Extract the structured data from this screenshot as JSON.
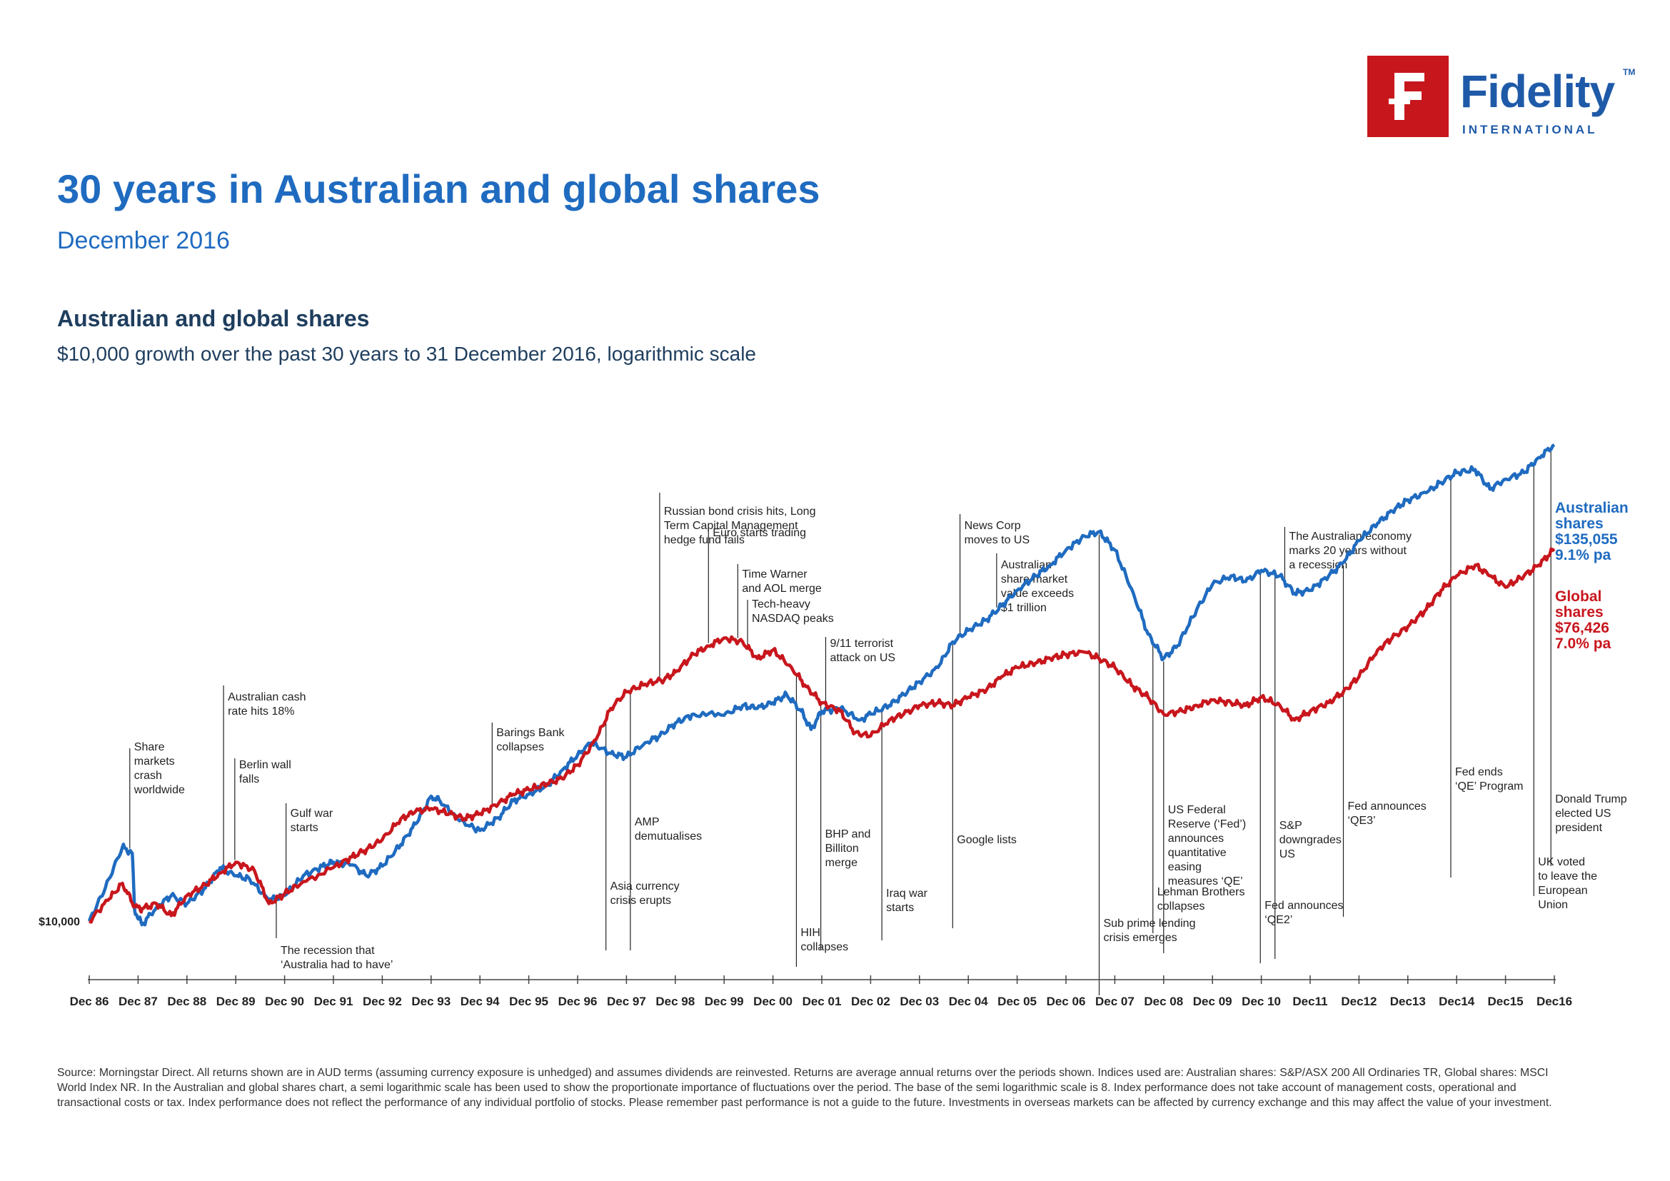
{
  "logo": {
    "word": "Fidelity",
    "tm": "TM",
    "sub": "INTERNATIONAL",
    "icon": "fidelity-f-icon",
    "color": "#c8161d"
  },
  "header": {
    "title": "30 years in Australian and global shares",
    "date": "December 2016"
  },
  "chart_header": {
    "title": "Australian and global shares",
    "subtitle": "$10,000 growth over the past 30 years to 31 December 2016, logarithmic scale"
  },
  "chart_data": {
    "type": "line",
    "yscale": "log",
    "y_label_value": "$10,000",
    "x_tick_labels": [
      "Dec 86",
      "Dec 87",
      "Dec 88",
      "Dec 89",
      "Dec 90",
      "Dec 91",
      "Dec 92",
      "Dec 93",
      "Dec 94",
      "Dec 95",
      "Dec 96",
      "Dec 97",
      "Dec 98",
      "Dec 99",
      "Dec 00",
      "Dec 01",
      "Dec 02",
      "Dec 03",
      "Dec 04",
      "Dec 05",
      "Dec 06",
      "Dec 07",
      "Dec 08",
      "Dec 09",
      "Dec 10",
      "Dec11",
      "Dec12",
      "Dec13",
      "Dec14",
      "Dec15",
      "Dec16"
    ],
    "ylim": [
      9000,
      400000
    ],
    "series": [
      {
        "name": "Australian shares",
        "end_value": "$135,055",
        "return": "9.1% pa",
        "color": "#1f6bc0",
        "points": [
          [
            1986.92,
            10000
          ],
          [
            1987.25,
            12000
          ],
          [
            1987.6,
            15000
          ],
          [
            1987.8,
            14500
          ],
          [
            1987.85,
            10600
          ],
          [
            1988.0,
            9800
          ],
          [
            1988.3,
            10800
          ],
          [
            1988.6,
            11500
          ],
          [
            1988.92,
            11000
          ],
          [
            1989.3,
            12000
          ],
          [
            1989.6,
            13400
          ],
          [
            1989.92,
            12800
          ],
          [
            1990.2,
            12600
          ],
          [
            1990.6,
            11200
          ],
          [
            1990.92,
            11500
          ],
          [
            1991.3,
            12800
          ],
          [
            1991.7,
            13500
          ],
          [
            1991.92,
            13800
          ],
          [
            1992.3,
            13600
          ],
          [
            1992.6,
            12800
          ],
          [
            1992.92,
            13500
          ],
          [
            1993.3,
            15200
          ],
          [
            1993.6,
            17000
          ],
          [
            1993.92,
            19800
          ],
          [
            1994.1,
            19300
          ],
          [
            1994.5,
            17300
          ],
          [
            1994.92,
            16400
          ],
          [
            1995.3,
            17600
          ],
          [
            1995.6,
            19300
          ],
          [
            1995.92,
            20000
          ],
          [
            1996.3,
            21000
          ],
          [
            1996.6,
            22800
          ],
          [
            1996.92,
            24800
          ],
          [
            1997.2,
            26500
          ],
          [
            1997.6,
            25000
          ],
          [
            1997.92,
            24500
          ],
          [
            1998.3,
            26500
          ],
          [
            1998.6,
            27500
          ],
          [
            1998.92,
            29500
          ],
          [
            1999.3,
            31000
          ],
          [
            1999.92,
            30800
          ],
          [
            2000.3,
            32500
          ],
          [
            2000.6,
            32000
          ],
          [
            2000.92,
            33000
          ],
          [
            2001.2,
            34500
          ],
          [
            2001.5,
            31500
          ],
          [
            2001.7,
            28500
          ],
          [
            2001.92,
            31500
          ],
          [
            2002.3,
            32000
          ],
          [
            2002.7,
            30000
          ],
          [
            2002.92,
            31000
          ],
          [
            2003.3,
            32500
          ],
          [
            2003.6,
            34500
          ],
          [
            2003.92,
            37000
          ],
          [
            2004.3,
            40000
          ],
          [
            2004.6,
            46000
          ],
          [
            2004.92,
            49000
          ],
          [
            2005.3,
            52000
          ],
          [
            2005.6,
            56000
          ],
          [
            2005.92,
            61000
          ],
          [
            2006.3,
            66000
          ],
          [
            2006.6,
            70000
          ],
          [
            2006.92,
            76000
          ],
          [
            2007.3,
            82000
          ],
          [
            2007.6,
            84000
          ],
          [
            2007.92,
            76000
          ],
          [
            2008.3,
            60000
          ],
          [
            2008.6,
            48000
          ],
          [
            2008.92,
            42000
          ],
          [
            2009.2,
            45000
          ],
          [
            2009.6,
            55000
          ],
          [
            2009.92,
            63000
          ],
          [
            2010.3,
            66000
          ],
          [
            2010.6,
            64000
          ],
          [
            2010.92,
            68000
          ],
          [
            2011.3,
            66000
          ],
          [
            2011.6,
            60000
          ],
          [
            2011.92,
            61000
          ],
          [
            2012.3,
            66000
          ],
          [
            2012.6,
            71000
          ],
          [
            2012.92,
            80000
          ],
          [
            2013.3,
            88000
          ],
          [
            2013.6,
            94000
          ],
          [
            2013.92,
            100000
          ],
          [
            2014.3,
            104000
          ],
          [
            2014.6,
            110000
          ],
          [
            2014.92,
            116000
          ],
          [
            2015.3,
            118000
          ],
          [
            2015.6,
            106000
          ],
          [
            2015.92,
            112000
          ],
          [
            2016.3,
            116000
          ],
          [
            2016.6,
            126000
          ],
          [
            2016.92,
            135055
          ]
        ]
      },
      {
        "name": "Global shares",
        "end_value": "$76,426",
        "return": "7.0% pa",
        "color": "#c8161d",
        "points": [
          [
            1986.92,
            10000
          ],
          [
            1987.3,
            11200
          ],
          [
            1987.6,
            12300
          ],
          [
            1987.85,
            10800
          ],
          [
            1988.0,
            10700
          ],
          [
            1988.3,
            11000
          ],
          [
            1988.6,
            10300
          ],
          [
            1988.92,
            11500
          ],
          [
            1989.3,
            12200
          ],
          [
            1989.6,
            13000
          ],
          [
            1989.92,
            13800
          ],
          [
            1990.3,
            13200
          ],
          [
            1990.6,
            11000
          ],
          [
            1990.92,
            11600
          ],
          [
            1991.3,
            12400
          ],
          [
            1991.92,
            13400
          ],
          [
            1992.3,
            14200
          ],
          [
            1992.6,
            14800
          ],
          [
            1992.92,
            15600
          ],
          [
            1993.3,
            17500
          ],
          [
            1993.6,
            18200
          ],
          [
            1993.92,
            18500
          ],
          [
            1994.3,
            18000
          ],
          [
            1994.6,
            17500
          ],
          [
            1994.92,
            18000
          ],
          [
            1995.3,
            19000
          ],
          [
            1995.6,
            20000
          ],
          [
            1995.92,
            20500
          ],
          [
            1996.3,
            21200
          ],
          [
            1996.6,
            21800
          ],
          [
            1996.92,
            23500
          ],
          [
            1997.3,
            27000
          ],
          [
            1997.6,
            32000
          ],
          [
            1997.92,
            35000
          ],
          [
            1998.3,
            36500
          ],
          [
            1998.7,
            37500
          ],
          [
            1998.92,
            39000
          ],
          [
            1999.3,
            43000
          ],
          [
            1999.6,
            45000
          ],
          [
            1999.92,
            47000
          ],
          [
            2000.3,
            46000
          ],
          [
            2000.6,
            42000
          ],
          [
            2000.92,
            44000
          ],
          [
            2001.3,
            40000
          ],
          [
            2001.6,
            36000
          ],
          [
            2001.92,
            33000
          ],
          [
            2002.3,
            31500
          ],
          [
            2002.6,
            28000
          ],
          [
            2002.92,
            27500
          ],
          [
            2003.3,
            30000
          ],
          [
            2003.6,
            31000
          ],
          [
            2003.92,
            32500
          ],
          [
            2004.3,
            33000
          ],
          [
            2004.6,
            32500
          ],
          [
            2004.92,
            34000
          ],
          [
            2005.3,
            35500
          ],
          [
            2005.6,
            38000
          ],
          [
            2005.92,
            40000
          ],
          [
            2006.3,
            41000
          ],
          [
            2006.6,
            42000
          ],
          [
            2006.92,
            43000
          ],
          [
            2007.3,
            43500
          ],
          [
            2007.6,
            42000
          ],
          [
            2007.92,
            40000
          ],
          [
            2008.3,
            36000
          ],
          [
            2008.6,
            34000
          ],
          [
            2008.92,
            31000
          ],
          [
            2009.3,
            31500
          ],
          [
            2009.6,
            32500
          ],
          [
            2009.92,
            33500
          ],
          [
            2010.3,
            33000
          ],
          [
            2010.6,
            32500
          ],
          [
            2010.92,
            34000
          ],
          [
            2011.3,
            32500
          ],
          [
            2011.6,
            30000
          ],
          [
            2011.92,
            31500
          ],
          [
            2012.3,
            33000
          ],
          [
            2012.6,
            35000
          ],
          [
            2012.92,
            38000
          ],
          [
            2013.3,
            44000
          ],
          [
            2013.6,
            47000
          ],
          [
            2013.92,
            50000
          ],
          [
            2014.3,
            55000
          ],
          [
            2014.6,
            61000
          ],
          [
            2014.92,
            66000
          ],
          [
            2015.3,
            70000
          ],
          [
            2015.6,
            66000
          ],
          [
            2015.92,
            62000
          ],
          [
            2016.3,
            66000
          ],
          [
            2016.6,
            70000
          ],
          [
            2016.92,
            76426
          ]
        ]
      }
    ],
    "annotations": [
      {
        "text": [
          "Share",
          "markets",
          "crash",
          "worldwide"
        ],
        "x": 1987.75,
        "side": "up"
      },
      {
        "text": [
          "Australian cash",
          "rate hits 18%"
        ],
        "x": 1989.67,
        "side": "up"
      },
      {
        "text": [
          "Berlin wall",
          "falls"
        ],
        "x": 1989.9,
        "side": "up"
      },
      {
        "text": [
          "Gulf war",
          "starts"
        ],
        "x": 1990.95,
        "side": "up"
      },
      {
        "text": [
          "The recession that",
          "‘Australia had to have’"
        ],
        "x": 1990.75,
        "side": "down"
      },
      {
        "text": [
          "Barings Bank",
          "collapses"
        ],
        "x": 1995.17,
        "side": "up"
      },
      {
        "text": [
          "Asia currency",
          "crisis erupts"
        ],
        "x": 1997.5,
        "side": "down"
      },
      {
        "text": [
          "AMP",
          "demutualises"
        ],
        "x": 1998.0,
        "side": "down"
      },
      {
        "text": [
          "Russian bond crisis hits, Long",
          "Term Capital Management",
          "hedge fund fails"
        ],
        "x": 1998.6,
        "side": "up"
      },
      {
        "text": [
          "Euro starts trading"
        ],
        "x": 1999.6,
        "side": "up"
      },
      {
        "text": [
          "Time Warner",
          "and AOL merge"
        ],
        "x": 2000.2,
        "side": "up"
      },
      {
        "text": [
          "Tech-heavy",
          "NASDAQ peaks"
        ],
        "x": 2000.4,
        "side": "up"
      },
      {
        "text": [
          "9/11 terrorist",
          "attack on US"
        ],
        "x": 2002.0,
        "side": "up"
      },
      {
        "text": [
          "HIH",
          "collapses"
        ],
        "x": 2001.4,
        "side": "down"
      },
      {
        "text": [
          "BHP and",
          "Billiton",
          "merge"
        ],
        "x": 2001.9,
        "side": "down"
      },
      {
        "text": [
          "Iraq war",
          "starts"
        ],
        "x": 2003.15,
        "side": "down"
      },
      {
        "text": [
          "Google lists"
        ],
        "x": 2004.6,
        "side": "down"
      },
      {
        "text": [
          "News Corp",
          "moves to US"
        ],
        "x": 2004.75,
        "side": "up"
      },
      {
        "text": [
          "Australian",
          "share market",
          "value exceeds",
          "$1 trillion"
        ],
        "x": 2005.5,
        "side": "up"
      },
      {
        "text": [
          "Sub prime lending",
          "crisis emerges"
        ],
        "x": 2007.6,
        "side": "down"
      },
      {
        "text": [
          "Lehman Brothers",
          "collapses"
        ],
        "x": 2008.7,
        "side": "down"
      },
      {
        "text": [
          "US Federal",
          "Reserve (‘Fed’)",
          "announces",
          "quantitative",
          "easing",
          "measures ‘QE’"
        ],
        "x": 2008.92,
        "side": "down"
      },
      {
        "text": [
          "Fed announces",
          "‘QE2’"
        ],
        "x": 2010.9,
        "side": "down"
      },
      {
        "text": [
          "S&P",
          "downgrades",
          "US"
        ],
        "x": 2011.2,
        "side": "down"
      },
      {
        "text": [
          "The Australian economy",
          "marks 20 years without",
          "a recession"
        ],
        "x": 2011.4,
        "side": "up"
      },
      {
        "text": [
          "Fed announces",
          "‘QE3’"
        ],
        "x": 2012.6,
        "side": "down"
      },
      {
        "text": [
          "Fed ends",
          "‘QE’ Program"
        ],
        "x": 2014.8,
        "side": "down"
      },
      {
        "text": [
          "UK voted",
          "to leave the",
          "European",
          "Union"
        ],
        "x": 2016.5,
        "side": "down"
      },
      {
        "text": [
          "Donald Trump",
          "elected US",
          "president"
        ],
        "x": 2016.85,
        "side": "down"
      }
    ]
  },
  "source_text": "Source: Morningstar Direct. All returns shown are in AUD terms (assuming currency exposure is unhedged) and assumes dividends are reinvested. Returns are average annual returns over the periods shown. Indices used are: Australian shares: S&P/ASX 200 All Ordinaries TR, Global shares: MSCI World Index NR. In the Australian and global shares chart, a semi logarithmic scale has been used to show the proportionate importance of fluctuations over the period. The base of the semi logarithmic scale is 8. Index performance does not take account of management costs, operational and transactional costs or tax. Index performance does not reflect the performance of any individual portfolio of stocks. Please remember past performance is not a guide to the future. Investments in overseas markets can be affected by currency exchange and this may affect the value of your investment."
}
